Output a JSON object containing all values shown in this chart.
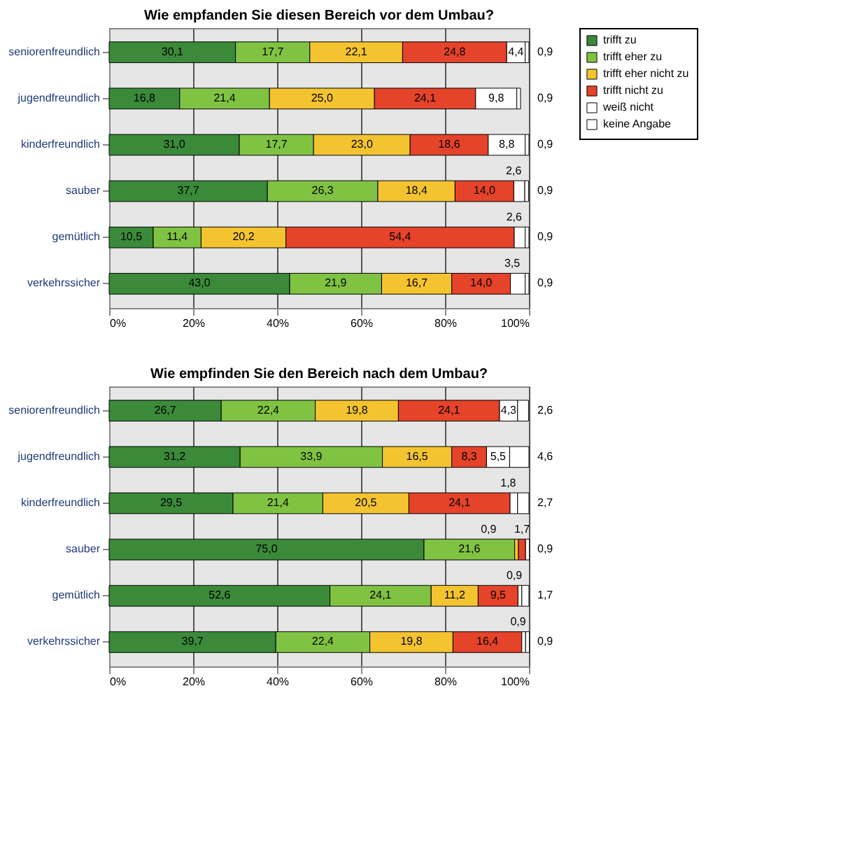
{
  "chart_data": [
    {
      "type": "bar",
      "orientation": "horizontal",
      "stacked": true,
      "title": "Wie empfanden Sie diesen Bereich vor dem Umbau?",
      "categories": [
        "seniorenfreundlich",
        "jugendfreundlich",
        "kinderfreundlich",
        "sauber",
        "gemütlich",
        "verkehrssicher"
      ],
      "xlim": [
        0,
        100
      ],
      "xticks": [
        {
          "value": 0,
          "label": "0%"
        },
        {
          "value": 20,
          "label": "20%"
        },
        {
          "value": 40,
          "label": "40%"
        },
        {
          "value": 60,
          "label": "60%"
        },
        {
          "value": 80,
          "label": "80%"
        },
        {
          "value": 100,
          "label": "100%"
        }
      ],
      "grid": "x",
      "legend": "right",
      "series": [
        {
          "name": "trifft zu",
          "color": "#3b8a3a",
          "values": [
            30.1,
            16.8,
            31.0,
            37.7,
            10.5,
            43.0
          ],
          "value_labels": [
            "30,1",
            "16,8",
            "31,0",
            "37,7",
            "10,5",
            "43,0"
          ]
        },
        {
          "name": "trifft eher zu",
          "color": "#80c342",
          "values": [
            17.7,
            21.4,
            17.7,
            26.3,
            11.4,
            21.9
          ],
          "value_labels": [
            "17,7",
            "21,4",
            "17,7",
            "26,3",
            "11,4",
            "21,9"
          ]
        },
        {
          "name": "trifft eher nicht zu",
          "color": "#f4c430",
          "values": [
            22.1,
            25.0,
            23.0,
            18.4,
            20.2,
            16.7
          ],
          "value_labels": [
            "22,1",
            "25,0",
            "23,0",
            "18,4",
            "20,2",
            "16,7"
          ]
        },
        {
          "name": "trifft nicht zu",
          "color": "#e5432a",
          "values": [
            24.8,
            24.1,
            18.6,
            14.0,
            54.4,
            14.0
          ],
          "value_labels": [
            "24,8",
            "24,1",
            "18,6",
            "14,0",
            "54,4",
            "14,0"
          ]
        },
        {
          "name": "weiß nicht",
          "color": "#ffffff",
          "values": [
            4.4,
            9.8,
            8.8,
            2.6,
            2.6,
            3.5
          ],
          "value_labels": [
            "4,4",
            "9,8",
            "8,8",
            "2,6",
            "2,6",
            "3,5"
          ]
        },
        {
          "name": "keine Angabe",
          "color": "#ffffff",
          "values": [
            0.9,
            0.9,
            0.9,
            0.9,
            0.9,
            0.9
          ],
          "value_labels": [
            "0,9",
            "0,9",
            "0,9",
            "0,9",
            "0,9",
            "0,9"
          ]
        }
      ]
    },
    {
      "type": "bar",
      "orientation": "horizontal",
      "stacked": true,
      "title": "Wie empfinden Sie den Bereich nach dem Umbau?",
      "categories": [
        "seniorenfreundlich",
        "jugendfreundlich",
        "kinderfreundlich",
        "sauber",
        "gemütlich",
        "verkehrssicher"
      ],
      "xlim": [
        0,
        100
      ],
      "xticks": [
        {
          "value": 0,
          "label": "0%"
        },
        {
          "value": 20,
          "label": "20%"
        },
        {
          "value": 40,
          "label": "40%"
        },
        {
          "value": 60,
          "label": "60%"
        },
        {
          "value": 80,
          "label": "80%"
        },
        {
          "value": 100,
          "label": "100%"
        }
      ],
      "grid": "x",
      "legend": "right",
      "series": [
        {
          "name": "trifft zu",
          "color": "#3b8a3a",
          "values": [
            26.7,
            31.2,
            29.5,
            75.0,
            52.6,
            39.7
          ],
          "value_labels": [
            "26,7",
            "31,2",
            "29,5",
            "75,0",
            "52,6",
            "39,7"
          ]
        },
        {
          "name": "trifft eher zu",
          "color": "#80c342",
          "values": [
            22.4,
            33.9,
            21.4,
            21.6,
            24.1,
            22.4
          ],
          "value_labels": [
            "22,4",
            "33,9",
            "21,4",
            "21,6",
            "24,1",
            "22,4"
          ]
        },
        {
          "name": "trifft eher nicht zu",
          "color": "#f4c430",
          "values": [
            19.8,
            16.5,
            20.5,
            0.9,
            11.2,
            19.8
          ],
          "value_labels": [
            "19,8",
            "16,5",
            "20,5",
            "0,9",
            "11,2",
            "19,8"
          ]
        },
        {
          "name": "trifft nicht zu",
          "color": "#e5432a",
          "values": [
            24.1,
            8.3,
            24.1,
            1.7,
            9.5,
            16.4
          ],
          "value_labels": [
            "24,1",
            "8,3",
            "24,1",
            "1,7",
            "9,5",
            "16,4"
          ]
        },
        {
          "name": "weiß nicht",
          "color": "#ffffff",
          "values": [
            4.3,
            5.5,
            1.8,
            null,
            0.9,
            0.9
          ],
          "value_labels": [
            "4,3",
            "5,5",
            "1,8",
            null,
            "0,9",
            "0,9"
          ]
        },
        {
          "name": "keine Angabe",
          "color": "#ffffff",
          "values": [
            2.6,
            4.6,
            2.7,
            0.9,
            1.7,
            0.9
          ],
          "value_labels": [
            "2,6",
            "4,6",
            "2,7",
            "0,9",
            "1,7",
            "0,9"
          ]
        }
      ]
    }
  ]
}
